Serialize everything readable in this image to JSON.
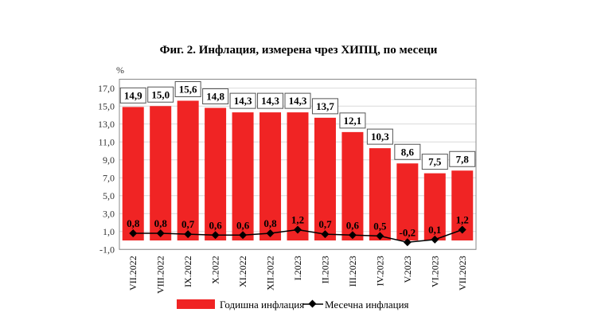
{
  "chart_data": {
    "type": "bar",
    "title": "Фиг. 2. Инфлация, измерена чрез ХИПЦ, по месеци",
    "ylabel": "%",
    "ylim": [
      -1,
      18
    ],
    "yticks": [
      "17,0",
      "15,0",
      "13,0",
      "11,0",
      "9,0",
      "7,0",
      "5,0",
      "3,0",
      "1,0",
      "-1,0"
    ],
    "ytick_values": [
      17,
      15,
      13,
      11,
      9,
      7,
      5,
      3,
      1,
      -1
    ],
    "grid": true,
    "legend_placement": "bottom",
    "categories": [
      "VII.2022",
      "VIII.2022",
      "IX.2022",
      "X.2022",
      "XI.2022",
      "XII.2022",
      "I.2023",
      "II.2023",
      "III.2023",
      "IV.2023",
      "V.2023",
      "VI.2023",
      "VII.2023"
    ],
    "series": [
      {
        "name": "Годишна инфлация",
        "type": "bar",
        "color": "#f02424",
        "values": [
          14.9,
          15.0,
          15.6,
          14.8,
          14.3,
          14.3,
          14.3,
          13.7,
          12.1,
          10.3,
          8.6,
          7.5,
          7.8
        ],
        "labels": [
          "14,9",
          "15,0",
          "15,6",
          "14,8",
          "14,3",
          "14,3",
          "14,3",
          "13,7",
          "12,1",
          "10,3",
          "8,6",
          "7,5",
          "7,8"
        ]
      },
      {
        "name": "Месечна инфлация",
        "type": "line",
        "color": "#000000",
        "values": [
          0.8,
          0.8,
          0.7,
          0.6,
          0.6,
          0.8,
          1.2,
          0.7,
          0.6,
          0.5,
          -0.2,
          0.1,
          1.2
        ],
        "labels": [
          "0,8",
          "0,8",
          "0,7",
          "0,6",
          "0,6",
          "0,8",
          "1,2",
          "0,7",
          "0,6",
          "0,5",
          "-0,2",
          "0,1",
          "1,2"
        ]
      }
    ]
  }
}
